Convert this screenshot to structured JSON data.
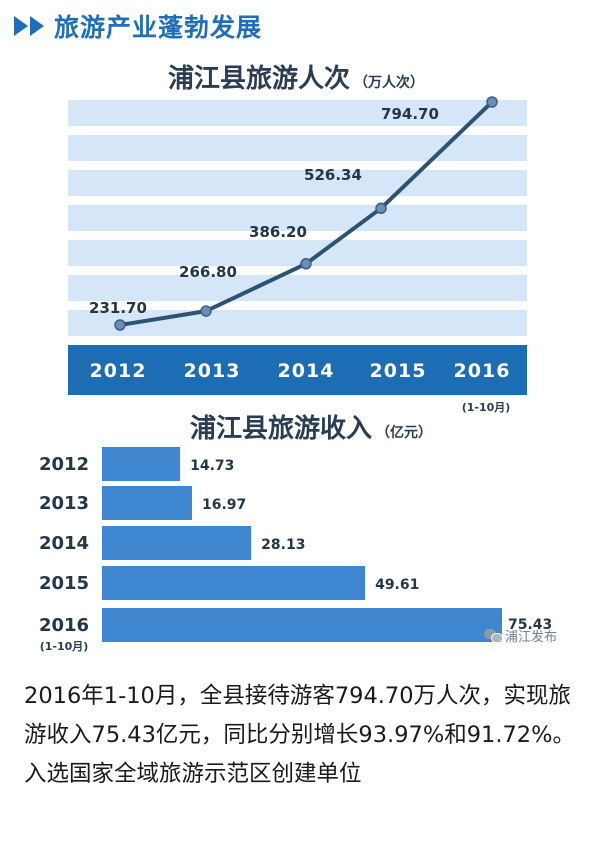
{
  "header": {
    "title": "旅游产业蓬勃发展"
  },
  "charts": {
    "line": {
      "title": "浦江县旅游人次",
      "unit": "（万人次）"
    },
    "bar": {
      "title": "浦江县旅游收入",
      "unit": "（亿元）"
    }
  },
  "chart_data": [
    {
      "type": "line",
      "title": "浦江县旅游人次",
      "ylabel": "万人次",
      "categories": [
        "2012",
        "2013",
        "2014",
        "2015",
        "2016"
      ],
      "category_notes": {
        "2016": "(1-10月)"
      },
      "values": [
        231.7,
        266.8,
        386.2,
        526.34,
        794.7
      ],
      "value_labels": [
        "231.70",
        "266.80",
        "386.20",
        "526.34",
        "794.70"
      ],
      "grid": true,
      "colors": {
        "line": "#2c5370",
        "point": "#6d8db7",
        "band": "#d4e6f8",
        "axis_band": "#1c6db4"
      }
    },
    {
      "type": "bar",
      "orientation": "horizontal",
      "title": "浦江县旅游收入",
      "ylabel": "亿元",
      "categories": [
        "2012",
        "2013",
        "2014",
        "2015",
        "2016"
      ],
      "category_notes": {
        "2016": "(1-10月)"
      },
      "values": [
        14.73,
        16.97,
        28.13,
        49.61,
        75.43
      ],
      "value_labels": [
        "14.73",
        "16.97",
        "28.13",
        "49.61",
        "75.43"
      ],
      "colors": {
        "bar": "#3f86d1",
        "label": "#243747"
      }
    }
  ],
  "watermark": {
    "text": "浦江发布",
    "icon": "wechat-icon"
  },
  "caption": {
    "text": "2016年1-10月，全县接待游客794.70万人次，实现旅游收入75.43亿元，同比分别增长93.97%和91.72%。入选国家全域旅游示范区创建单位"
  }
}
